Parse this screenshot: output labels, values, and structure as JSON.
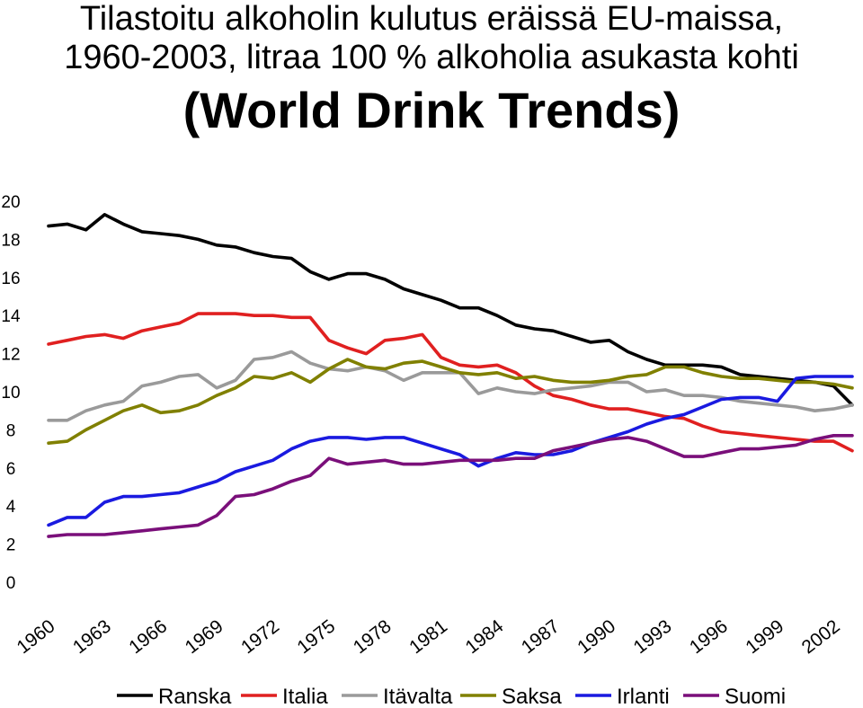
{
  "title": {
    "line1": "Tilastoitu alkoholin kulutus eräissä EU-maissa,",
    "line2": "1960-2003, litraa 100 % alkoholia asukasta kohti",
    "subtitle": "(World Drink Trends)"
  },
  "chart_data": {
    "type": "line",
    "xlim": [
      1960,
      2003
    ],
    "ylim": [
      0,
      20
    ],
    "y_ticks": [
      "0",
      "2",
      "4",
      "6",
      "8",
      "10",
      "12",
      "14",
      "16",
      "18",
      "20"
    ],
    "x_ticks": [
      "1960",
      "1963",
      "1966",
      "1969",
      "1972",
      "1975",
      "1978",
      "1981",
      "1984",
      "1987",
      "1990",
      "1993",
      "1996",
      "1999",
      "2002"
    ],
    "grid": false,
    "legend_position": "bottom",
    "x": [
      1960,
      1961,
      1962,
      1963,
      1964,
      1965,
      1966,
      1967,
      1968,
      1969,
      1970,
      1971,
      1972,
      1973,
      1974,
      1975,
      1976,
      1977,
      1978,
      1979,
      1980,
      1981,
      1982,
      1983,
      1984,
      1985,
      1986,
      1987,
      1988,
      1989,
      1990,
      1991,
      1992,
      1993,
      1994,
      1995,
      1996,
      1997,
      1998,
      1999,
      2000,
      2001,
      2002,
      2003
    ],
    "series": [
      {
        "name": "Ranska",
        "color": "#000000",
        "values": [
          18.7,
          18.8,
          18.5,
          19.3,
          18.8,
          18.4,
          18.3,
          18.2,
          18.0,
          17.7,
          17.6,
          17.3,
          17.1,
          17.0,
          16.3,
          15.9,
          16.2,
          16.2,
          15.9,
          15.4,
          15.1,
          14.8,
          14.4,
          14.4,
          14.0,
          13.5,
          13.3,
          13.2,
          12.9,
          12.6,
          12.7,
          12.1,
          11.7,
          11.4,
          11.4,
          11.4,
          11.3,
          10.9,
          10.8,
          10.7,
          10.6,
          10.5,
          10.3,
          9.3
        ]
      },
      {
        "name": "Italia",
        "color": "#e02020",
        "values": [
          12.5,
          12.7,
          12.9,
          13.0,
          12.8,
          13.2,
          13.4,
          13.6,
          14.1,
          14.1,
          14.1,
          14.0,
          14.0,
          13.9,
          13.9,
          12.7,
          12.3,
          12.0,
          12.7,
          12.8,
          13.0,
          11.8,
          11.4,
          11.3,
          11.4,
          11.0,
          10.3,
          9.8,
          9.6,
          9.3,
          9.1,
          9.1,
          8.9,
          8.7,
          8.6,
          8.2,
          7.9,
          7.8,
          7.7,
          7.6,
          7.5,
          7.4,
          7.4,
          6.9
        ]
      },
      {
        "name": "Itävalta",
        "color": "#9a9a9a",
        "values": [
          8.5,
          8.5,
          9.0,
          9.3,
          9.5,
          10.3,
          10.5,
          10.8,
          10.9,
          10.2,
          10.6,
          11.7,
          11.8,
          12.1,
          11.5,
          11.2,
          11.1,
          11.3,
          11.1,
          10.6,
          11.0,
          11.0,
          11.0,
          9.9,
          10.2,
          10.0,
          9.9,
          10.1,
          10.2,
          10.3,
          10.5,
          10.5,
          10.0,
          10.1,
          9.8,
          9.8,
          9.7,
          9.5,
          9.4,
          9.3,
          9.2,
          9.0,
          9.1,
          9.3
        ]
      },
      {
        "name": "Saksa",
        "color": "#808000",
        "values": [
          7.3,
          7.4,
          8.0,
          8.5,
          9.0,
          9.3,
          8.9,
          9.0,
          9.3,
          9.8,
          10.2,
          10.8,
          10.7,
          11.0,
          10.5,
          11.2,
          11.7,
          11.3,
          11.2,
          11.5,
          11.6,
          11.3,
          11.0,
          10.9,
          11.0,
          10.7,
          10.8,
          10.6,
          10.5,
          10.5,
          10.6,
          10.8,
          10.9,
          11.3,
          11.3,
          11.0,
          10.8,
          10.7,
          10.7,
          10.6,
          10.5,
          10.5,
          10.4,
          10.2
        ]
      },
      {
        "name": "Irlanti",
        "color": "#1a1ae0",
        "values": [
          3.0,
          3.4,
          3.4,
          4.2,
          4.5,
          4.5,
          4.6,
          4.7,
          5.0,
          5.3,
          5.8,
          6.1,
          6.4,
          7.0,
          7.4,
          7.6,
          7.6,
          7.5,
          7.6,
          7.6,
          7.3,
          7.0,
          6.7,
          6.1,
          6.5,
          6.8,
          6.7,
          6.7,
          6.9,
          7.3,
          7.6,
          7.9,
          8.3,
          8.6,
          8.8,
          9.2,
          9.6,
          9.7,
          9.7,
          9.5,
          10.7,
          10.8,
          10.8,
          10.8
        ]
      },
      {
        "name": "Suomi",
        "color": "#7a0f7a",
        "values": [
          2.4,
          2.5,
          2.5,
          2.5,
          2.6,
          2.7,
          2.8,
          2.9,
          3.0,
          3.5,
          4.5,
          4.6,
          4.9,
          5.3,
          5.6,
          6.5,
          6.2,
          6.3,
          6.4,
          6.2,
          6.2,
          6.3,
          6.4,
          6.4,
          6.4,
          6.5,
          6.5,
          6.9,
          7.1,
          7.3,
          7.5,
          7.6,
          7.4,
          7.0,
          6.6,
          6.6,
          6.8,
          7.0,
          7.0,
          7.1,
          7.2,
          7.5,
          7.7,
          7.7
        ]
      }
    ]
  }
}
